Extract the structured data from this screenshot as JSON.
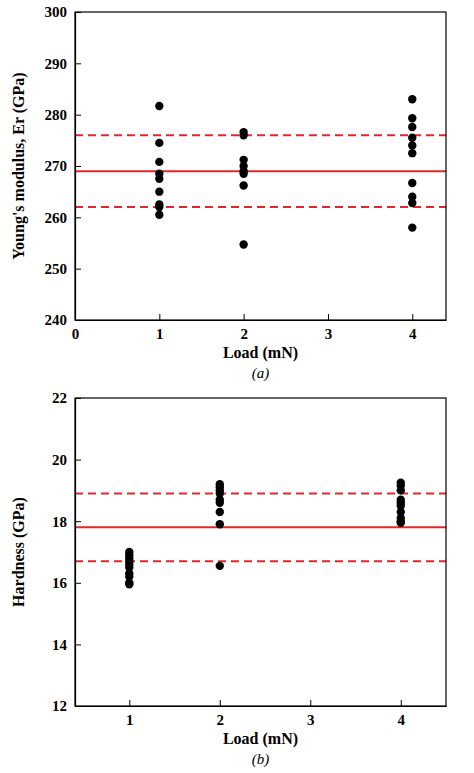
{
  "chart_data": [
    {
      "type": "scatter",
      "subtitle": "(a)",
      "x_label": "Load (mN)",
      "y_label": "Young's modulus, Er (GPa)",
      "xlim": [
        0,
        4.4
      ],
      "xticks": [
        0,
        1,
        2,
        3,
        4
      ],
      "ylim": [
        240,
        300
      ],
      "yticks": [
        240,
        250,
        260,
        270,
        280,
        290,
        300
      ],
      "grid": false,
      "series": [
        {
          "marker": "circle",
          "color": "#000000",
          "x": [
            1,
            1,
            1,
            1,
            1,
            1,
            1,
            1,
            1,
            2,
            2,
            2,
            2,
            2,
            2,
            2,
            2,
            4,
            4,
            4,
            4,
            4,
            4,
            4,
            4,
            4,
            4
          ],
          "values": [
            281.7,
            274.5,
            270.8,
            268.5,
            267.5,
            265,
            262.5,
            262,
            260.5,
            276.6,
            276,
            271.2,
            270,
            269,
            268.5,
            266.2,
            254.7,
            283,
            279.3,
            277.6,
            275.5,
            274,
            272.5,
            266.7,
            264,
            262.8,
            258
          ]
        }
      ],
      "hlines": [
        {
          "value": 269,
          "line_style": "solid",
          "color": "#e3262b"
        },
        {
          "value": 276,
          "line_style": "dashed",
          "color": "#e3262b"
        },
        {
          "value": 262,
          "line_style": "dashed",
          "color": "#e3262b"
        }
      ]
    },
    {
      "type": "scatter",
      "subtitle": "(b)",
      "x_label": "Load (mN)",
      "y_label": "Hardness (GPa)",
      "xlim": [
        0.4,
        4.5
      ],
      "xticks": [
        1,
        2,
        3,
        4
      ],
      "ylim": [
        12,
        22
      ],
      "yticks": [
        12,
        14,
        16,
        18,
        20,
        22
      ],
      "grid": false,
      "series": [
        {
          "marker": "circle",
          "color": "#000000",
          "x": [
            1,
            1,
            1,
            1,
            1,
            1,
            1,
            1,
            1,
            1,
            2,
            2,
            2,
            2,
            2,
            2,
            2,
            2,
            2,
            4,
            4,
            4,
            4,
            4,
            4,
            4,
            4,
            4,
            4
          ],
          "values": [
            17.0,
            16.9,
            16.8,
            16.7,
            16.6,
            16.5,
            16.3,
            16.2,
            16.0,
            15.95,
            19.2,
            19.1,
            19.0,
            18.9,
            18.7,
            18.6,
            18.3,
            17.9,
            16.55,
            19.25,
            19.15,
            19.0,
            18.7,
            18.6,
            18.5,
            18.3,
            18.1,
            18.0,
            17.95
          ]
        }
      ],
      "hlines": [
        {
          "value": 17.8,
          "line_style": "solid",
          "color": "#e3262b"
        },
        {
          "value": 18.9,
          "line_style": "dashed",
          "color": "#e3262b"
        },
        {
          "value": 16.7,
          "line_style": "dashed",
          "color": "#e3262b"
        }
      ]
    }
  ]
}
